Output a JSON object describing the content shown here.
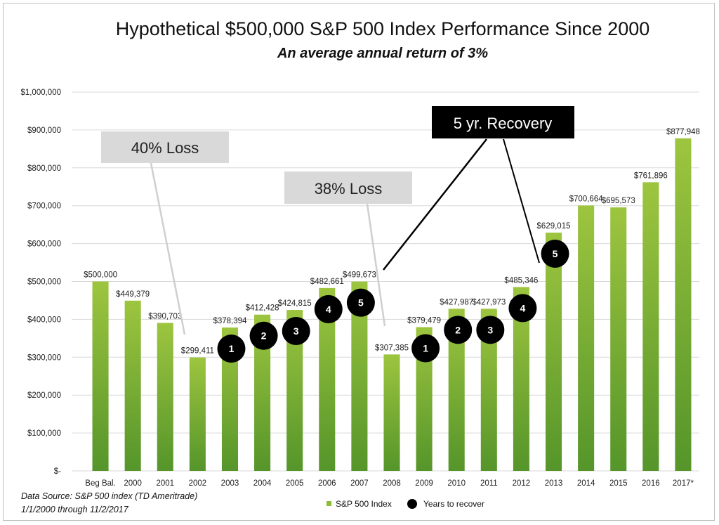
{
  "chart_data": {
    "type": "bar",
    "title": "Hypothetical $500,000 S&P 500 Index Performance Since 2000",
    "subtitle": "An average annual return of 3%",
    "categories": [
      "Beg Bal.",
      "2000",
      "2001",
      "2002",
      "2003",
      "2004",
      "2005",
      "2006",
      "2007",
      "2008",
      "2009",
      "2010",
      "2011",
      "2012",
      "2013",
      "2014",
      "2015",
      "2016",
      "2017*"
    ],
    "series": [
      {
        "name": "S&P 500 Index",
        "values": [
          500000,
          449379,
          390703,
          299411,
          378394,
          412428,
          424815,
          482661,
          499673,
          307385,
          379479,
          427987,
          427973,
          485346,
          629015,
          700664,
          695573,
          761896,
          877948
        ]
      }
    ],
    "data_labels": [
      "$500,000",
      "$449,379",
      "$390,703",
      "$299,411",
      "$378,394",
      "$412,428",
      "$424,815",
      "$482,661",
      "$499,673",
      "$307,385",
      "$379,479",
      "$427,987",
      "$427,973",
      "$485,346",
      "$629,015",
      "$700,664",
      "$695,573",
      "$761,896",
      "$877,948"
    ],
    "ylim": [
      0,
      1000000
    ],
    "yticks": [
      0,
      100000,
      200000,
      300000,
      400000,
      500000,
      600000,
      700000,
      800000,
      900000,
      1000000
    ],
    "ytick_labels": [
      "$-",
      "$100,000",
      "$200,000",
      "$300,000",
      "$400,000",
      "$500,000",
      "$600,000",
      "$700,000",
      "$800,000",
      "$900,000",
      "$1,000,000"
    ],
    "xlabel": "",
    "ylabel": "",
    "grid": true,
    "legend_position": "bottom",
    "legend": {
      "bar_label": "S&P 500 Index",
      "marker_label": "Years to recover"
    },
    "recovery_markers": [
      {
        "category": "2003",
        "label": "1"
      },
      {
        "category": "2004",
        "label": "2"
      },
      {
        "category": "2005",
        "label": "3"
      },
      {
        "category": "2006",
        "label": "4"
      },
      {
        "category": "2007",
        "label": "5"
      },
      {
        "category": "2009",
        "label": "1"
      },
      {
        "category": "2010",
        "label": "2"
      },
      {
        "category": "2011",
        "label": "3"
      },
      {
        "category": "2012",
        "label": "4"
      },
      {
        "category": "2013",
        "label": "5"
      }
    ],
    "annotations": {
      "loss_1": "40% Loss",
      "loss_2": "38% Loss",
      "recovery": "5 yr. Recovery"
    },
    "colors": {
      "bar_top": "#9dc53f",
      "bar_bottom": "#55952a",
      "marker": "#000000",
      "gray_callout": "#d9d9d9",
      "dark_callout": "#000000"
    }
  },
  "footer": {
    "source_line": "Data Source: S&P 500 index (TD Ameritrade)",
    "date_line": "1/1/2000 through 11/2/2017"
  }
}
